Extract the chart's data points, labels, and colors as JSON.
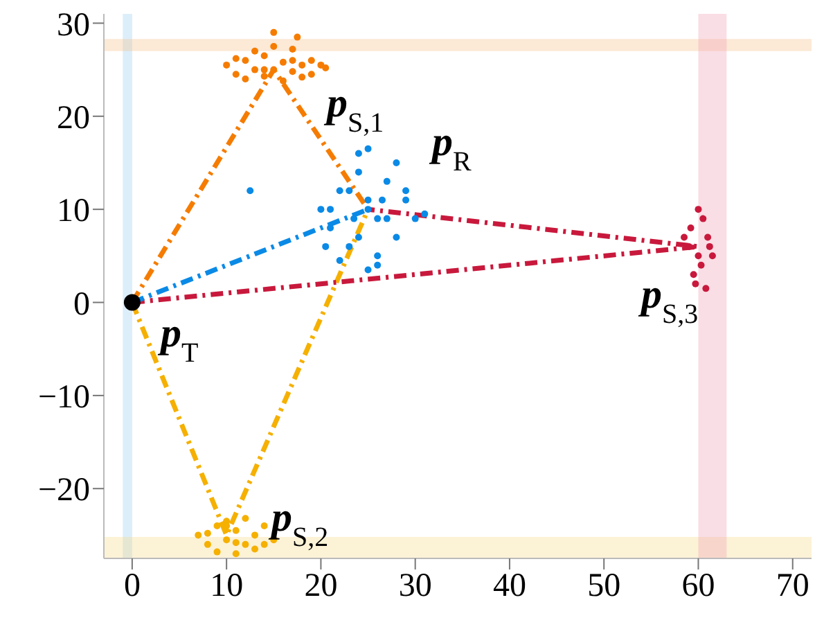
{
  "chart_data": {
    "type": "scatter",
    "xlim": [
      -3,
      72
    ],
    "ylim": [
      -27.5,
      31
    ],
    "xticks": [
      0,
      10,
      20,
      30,
      40,
      50,
      60,
      70
    ],
    "yticks": [
      -20,
      -10,
      0,
      10,
      20,
      30
    ],
    "marker": "circle",
    "bands": [
      {
        "axis": "x",
        "from": -1,
        "to": 0,
        "color": "#9ccff0"
      },
      {
        "axis": "y",
        "from": 27,
        "to": 28.3,
        "color": "#f7c08a"
      },
      {
        "axis": "y",
        "from": -27.5,
        "to": -25.2,
        "color": "#f7d98a"
      },
      {
        "axis": "x",
        "from": 60,
        "to": 63,
        "color": "#f0a0b4"
      }
    ],
    "series": [
      {
        "type": "line",
        "marker": "none",
        "line_style": "dashed",
        "color": "#f57c00",
        "x": [
          0,
          15,
          25
        ],
        "values": [
          0,
          25,
          10
        ]
      },
      {
        "type": "line",
        "marker": "none",
        "line_style": "dashed",
        "color": "#f5b000",
        "x": [
          0,
          10,
          25
        ],
        "values": [
          0,
          -25,
          10
        ]
      },
      {
        "type": "line",
        "marker": "none",
        "line_style": "dashed",
        "color": "#c8193c",
        "x": [
          0,
          60,
          25
        ],
        "values": [
          0,
          6,
          10
        ]
      },
      {
        "type": "line",
        "marker": "none",
        "line_style": "dashed",
        "color": "#0a8ae6",
        "x": [
          0,
          25
        ],
        "values": [
          0,
          10
        ]
      },
      {
        "color": "#f57c00",
        "x": [
          10,
          11,
          12,
          13,
          14,
          15,
          17,
          17,
          18,
          19,
          20,
          12,
          14,
          16,
          18,
          13,
          15,
          17,
          11,
          19,
          15,
          14,
          16,
          20.5,
          17.5
        ],
        "values": [
          25.5,
          24.5,
          26,
          25,
          26.5,
          25,
          24.8,
          26,
          25.5,
          24.5,
          25.5,
          24,
          24.3,
          23.8,
          24.2,
          27,
          27.5,
          27.2,
          26.2,
          26,
          29,
          25,
          25.8,
          25.2,
          28.5
        ]
      },
      {
        "color": "#0a8ae6",
        "x": [
          20,
          21,
          22,
          23,
          24,
          25,
          26,
          27,
          28,
          29,
          30,
          22,
          24,
          26,
          28,
          23,
          25,
          27,
          21,
          29,
          25,
          24,
          26,
          31,
          20.5,
          25,
          23.5,
          26.5,
          12.5
        ],
        "values": [
          10,
          8,
          12,
          6,
          14,
          10,
          5,
          13,
          7,
          11,
          9,
          4.5,
          16,
          4,
          15,
          12,
          11,
          9,
          10,
          12,
          16.5,
          7,
          9,
          9.5,
          6,
          3.5,
          9,
          11,
          12
        ]
      },
      {
        "color": "#c8193c",
        "x": [
          59,
          60,
          61,
          59.5,
          60.5,
          61.2,
          60,
          59.7,
          60.3,
          59.2,
          60.8,
          61.5,
          58.5
        ],
        "values": [
          6,
          5,
          7,
          3,
          9,
          6,
          10,
          2,
          4,
          8,
          1.5,
          5,
          7
        ]
      },
      {
        "color": "#f5b000",
        "x": [
          7,
          8,
          9,
          10,
          11,
          12,
          13,
          14,
          15,
          9,
          11,
          13,
          10,
          12,
          8,
          14,
          11,
          10
        ],
        "values": [
          -25,
          -26,
          -24,
          -25.5,
          -24.5,
          -26,
          -25,
          -24,
          -25.5,
          -26.8,
          -27,
          -26.5,
          -23.5,
          -23.2,
          -24.8,
          -26,
          -25.8,
          -24
        ]
      },
      {
        "color": "#000000",
        "x": [
          0
        ],
        "values": [
          0
        ]
      }
    ],
    "annotations": [
      "p$_{S,1}$",
      "p$_{R}$",
      "p$_{S,3}$",
      "p$_{T}$",
      "p$_{S,2}$"
    ]
  }
}
